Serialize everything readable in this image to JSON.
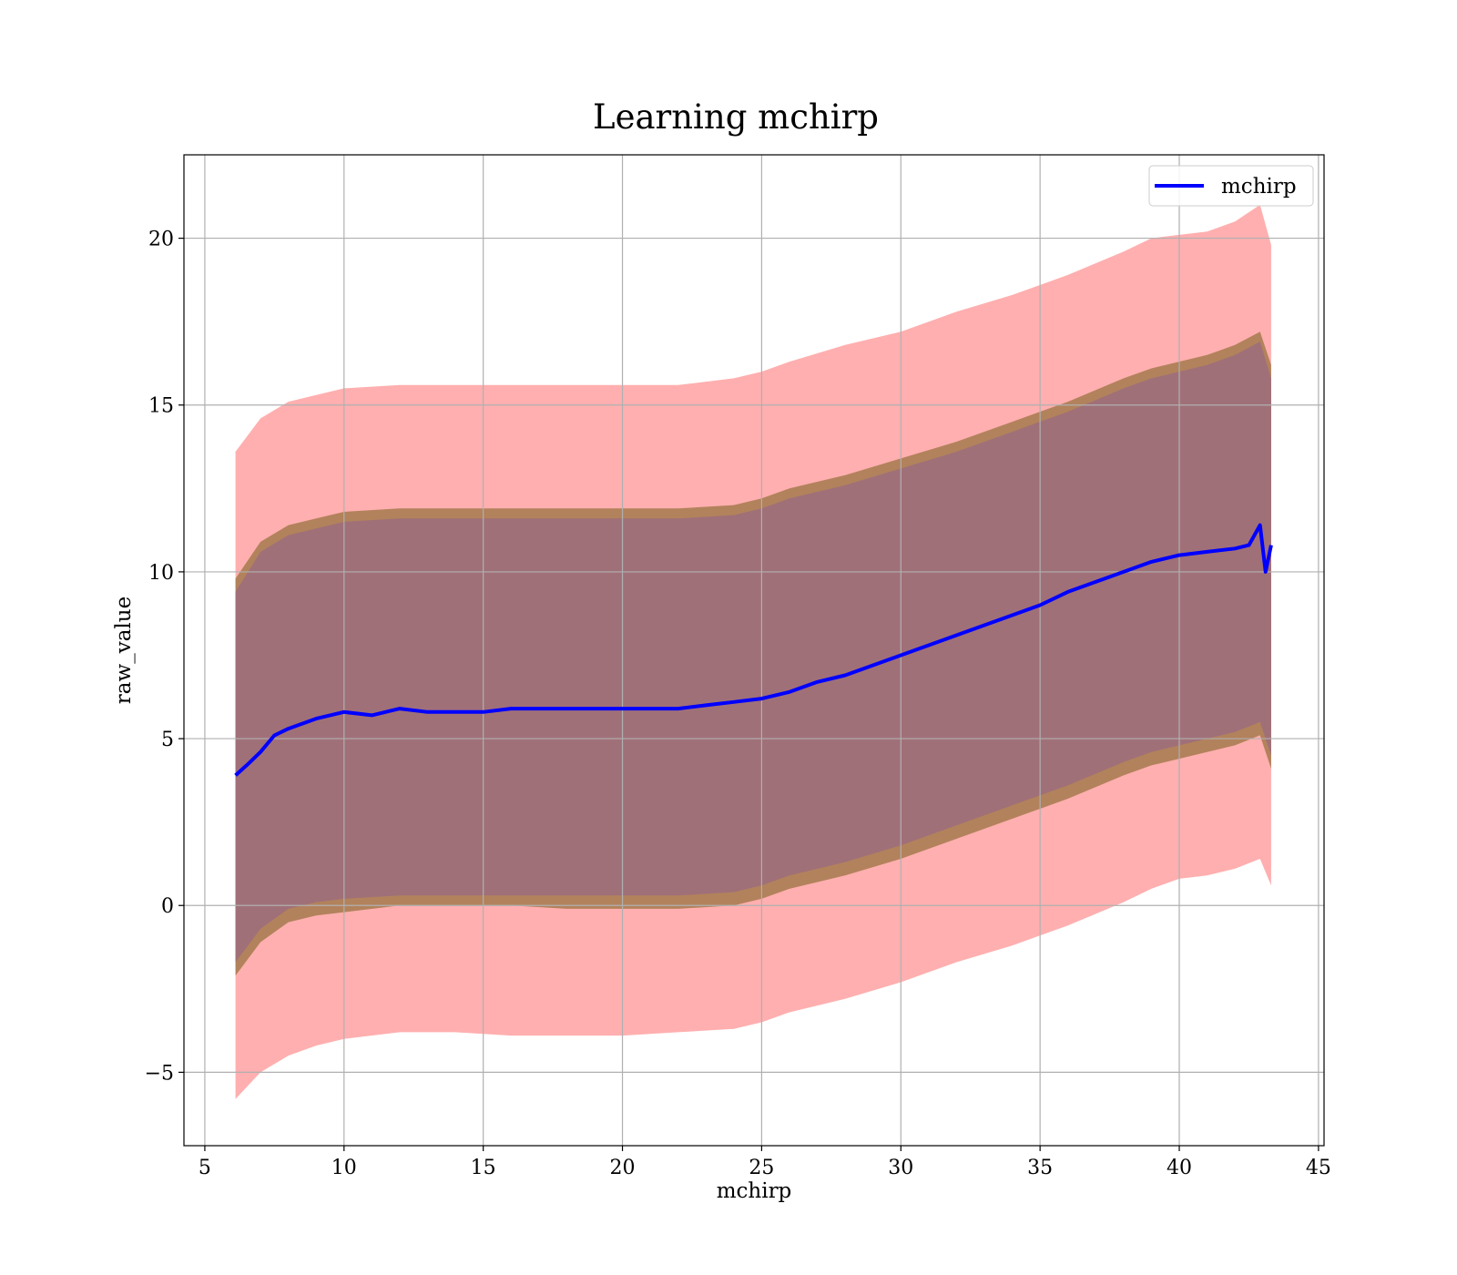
{
  "chart_data": {
    "type": "line",
    "title": "Learning mchirp",
    "xlabel": "mchirp",
    "ylabel": "raw_value",
    "xlim": [
      4.25,
      45.2
    ],
    "ylim": [
      -7.2,
      22.5
    ],
    "x_ticks": [
      5,
      10,
      15,
      20,
      25,
      30,
      35,
      40,
      45
    ],
    "y_ticks": [
      -5,
      0,
      5,
      10,
      15,
      20
    ],
    "x_tick_labels": [
      "5",
      "10",
      "15",
      "20",
      "25",
      "30",
      "35",
      "40",
      "45"
    ],
    "y_tick_labels": [
      "−5",
      "0",
      "5",
      "10",
      "15",
      "20"
    ],
    "grid": true,
    "legend": {
      "position": "upper right",
      "entries": [
        "mchirp"
      ]
    },
    "series": [
      {
        "name": "mchirp",
        "style": "line",
        "color": "#0000ff",
        "x": [
          6.1,
          6.5,
          7.0,
          7.5,
          8.0,
          9.0,
          10.0,
          11.0,
          12.0,
          13.0,
          14.0,
          15.0,
          16.0,
          17.0,
          18.0,
          19.0,
          20.0,
          21.0,
          22.0,
          23.0,
          24.0,
          25.0,
          26.0,
          27.0,
          28.0,
          29.0,
          30.0,
          31.0,
          32.0,
          33.0,
          34.0,
          35.0,
          36.0,
          37.0,
          38.0,
          39.0,
          40.0,
          41.0,
          42.0,
          42.5,
          42.9,
          43.1,
          43.3
        ],
        "y": [
          3.9,
          4.2,
          4.6,
          5.1,
          5.3,
          5.6,
          5.8,
          5.7,
          5.9,
          5.8,
          5.8,
          5.8,
          5.9,
          5.9,
          5.9,
          5.9,
          5.9,
          5.9,
          5.9,
          6.0,
          6.1,
          6.2,
          6.4,
          6.7,
          6.9,
          7.2,
          7.5,
          7.8,
          8.1,
          8.4,
          8.7,
          9.0,
          9.4,
          9.7,
          10.0,
          10.3,
          10.5,
          10.6,
          10.7,
          10.8,
          11.4,
          10.0,
          10.8
        ]
      }
    ],
    "bands": [
      {
        "name": "outer band",
        "color": "#ffafaf",
        "x": [
          6.1,
          7.0,
          8.0,
          9.0,
          10.0,
          12.0,
          14.0,
          16.0,
          18.0,
          20.0,
          22.0,
          24.0,
          25.0,
          26.0,
          28.0,
          30.0,
          32.0,
          34.0,
          36.0,
          38.0,
          39.0,
          40.0,
          41.0,
          42.0,
          42.9,
          43.3
        ],
        "upper": [
          13.6,
          14.6,
          15.1,
          15.3,
          15.5,
          15.6,
          15.6,
          15.6,
          15.6,
          15.6,
          15.6,
          15.8,
          16.0,
          16.3,
          16.8,
          17.2,
          17.8,
          18.3,
          18.9,
          19.6,
          20.0,
          20.1,
          20.2,
          20.5,
          21.0,
          19.8
        ],
        "lower": [
          -5.8,
          -5.0,
          -4.5,
          -4.2,
          -4.0,
          -3.8,
          -3.8,
          -3.9,
          -3.9,
          -3.9,
          -3.8,
          -3.7,
          -3.5,
          -3.2,
          -2.8,
          -2.3,
          -1.7,
          -1.2,
          -0.6,
          0.1,
          0.5,
          0.8,
          0.9,
          1.1,
          1.4,
          0.6
        ]
      },
      {
        "name": "middle band",
        "color": "#b2825c",
        "x": [
          6.1,
          7.0,
          8.0,
          9.0,
          10.0,
          12.0,
          14.0,
          16.0,
          18.0,
          20.0,
          22.0,
          24.0,
          25.0,
          26.0,
          28.0,
          30.0,
          32.0,
          34.0,
          36.0,
          38.0,
          39.0,
          40.0,
          41.0,
          42.0,
          42.9,
          43.3
        ],
        "upper": [
          9.8,
          10.9,
          11.4,
          11.6,
          11.8,
          11.9,
          11.9,
          11.9,
          11.9,
          11.9,
          11.9,
          12.0,
          12.2,
          12.5,
          12.9,
          13.4,
          13.9,
          14.5,
          15.1,
          15.8,
          16.1,
          16.3,
          16.5,
          16.8,
          17.2,
          16.2
        ],
        "lower": [
          -2.1,
          -1.1,
          -0.5,
          -0.3,
          -0.2,
          0.0,
          0.0,
          0.0,
          -0.1,
          -0.1,
          -0.1,
          0.0,
          0.2,
          0.5,
          0.9,
          1.4,
          2.0,
          2.6,
          3.2,
          3.9,
          4.2,
          4.4,
          4.6,
          4.8,
          5.1,
          4.1
        ]
      },
      {
        "name": "inner band",
        "color": "#a07078",
        "x": [
          6.1,
          7.0,
          8.0,
          9.0,
          10.0,
          12.0,
          14.0,
          16.0,
          18.0,
          20.0,
          22.0,
          24.0,
          25.0,
          26.0,
          28.0,
          30.0,
          32.0,
          34.0,
          36.0,
          38.0,
          39.0,
          40.0,
          41.0,
          42.0,
          42.9,
          43.3
        ],
        "upper": [
          9.4,
          10.6,
          11.1,
          11.3,
          11.5,
          11.6,
          11.6,
          11.6,
          11.6,
          11.6,
          11.6,
          11.7,
          11.9,
          12.2,
          12.6,
          13.1,
          13.6,
          14.2,
          14.8,
          15.5,
          15.8,
          16.0,
          16.2,
          16.5,
          16.9,
          15.8
        ],
        "lower": [
          -1.7,
          -0.7,
          -0.1,
          0.1,
          0.2,
          0.3,
          0.3,
          0.3,
          0.3,
          0.3,
          0.3,
          0.4,
          0.6,
          0.9,
          1.3,
          1.8,
          2.4,
          3.0,
          3.6,
          4.3,
          4.6,
          4.8,
          5.0,
          5.2,
          5.5,
          4.5
        ]
      }
    ]
  }
}
